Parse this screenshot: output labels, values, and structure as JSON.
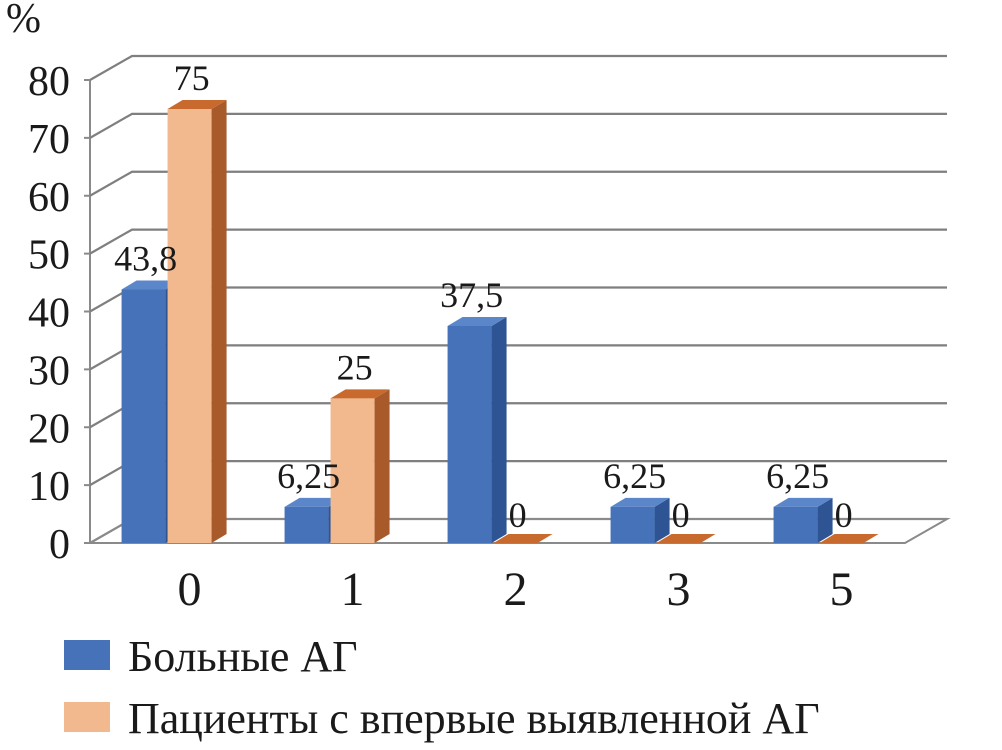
{
  "chart_data": {
    "type": "bar",
    "three_d": true,
    "ylabel": "%",
    "ylim": [
      0,
      80
    ],
    "ytick_step": 10,
    "grid": true,
    "legend_position": "bottom",
    "categories": [
      "0",
      "1",
      "2",
      "3",
      "5"
    ],
    "series": [
      {
        "name": "Больные АГ",
        "values": [
          43.8,
          6.25,
          37.5,
          6.25,
          6.25
        ],
        "labels": [
          "43,8",
          "6,25",
          "37,5",
          "6,25",
          "6,25"
        ],
        "color": "#4572b8",
        "side_color": "#2f5494",
        "top_color": "#5b86c9"
      },
      {
        "name": "Пациенты с впервые выявленной АГ",
        "values": [
          75,
          25,
          0,
          0,
          0
        ],
        "labels": [
          "75",
          "25",
          "0",
          "0",
          "0"
        ],
        "color": "#f2b98e",
        "side_color": "#a85a2a",
        "top_color": "#c86a2e"
      }
    ]
  }
}
